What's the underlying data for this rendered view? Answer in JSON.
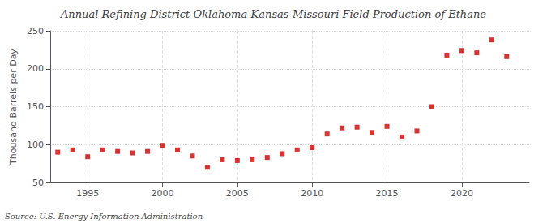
{
  "chart_data": {
    "type": "scatter",
    "title": "Annual Refining District Oklahoma-Kansas-Missouri Field Production of Ethane",
    "ylabel": "Thousand Barrels per Day",
    "source": "Source: U.S. Energy Information Administration",
    "x": [
      1993,
      1994,
      1995,
      1996,
      1997,
      1998,
      1999,
      2000,
      2001,
      2002,
      2003,
      2004,
      2005,
      2006,
      2007,
      2008,
      2009,
      2010,
      2011,
      2012,
      2013,
      2014,
      2015,
      2016,
      2017,
      2018,
      2019,
      2020,
      2021,
      2022,
      2023
    ],
    "values": [
      90,
      93,
      84,
      93,
      91,
      89,
      91,
      99,
      93,
      85,
      70,
      80,
      79,
      80,
      83,
      88,
      93,
      96,
      114,
      122,
      123,
      116,
      124,
      110,
      118,
      150,
      218,
      224,
      221,
      238,
      216
    ],
    "color": "#cc0000",
    "marker": "square",
    "xlim": [
      1992.5,
      2024.5
    ],
    "xticks": [
      1995,
      2000,
      2005,
      2010,
      2015,
      2020
    ],
    "ylim": [
      50,
      250
    ],
    "yticks": [
      50,
      100,
      150,
      200,
      250
    ],
    "grid": true
  }
}
